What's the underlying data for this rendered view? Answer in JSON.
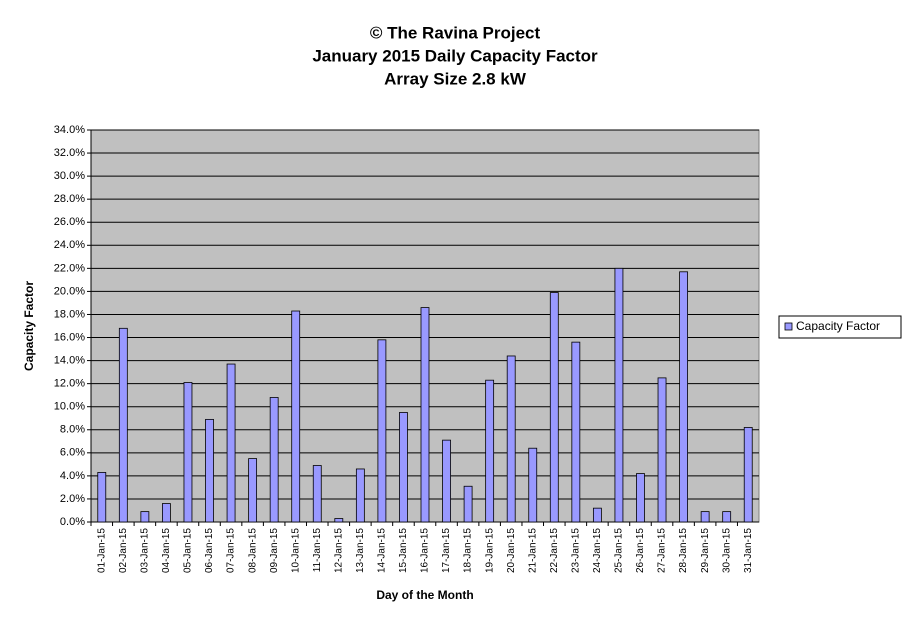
{
  "chart_data": {
    "type": "bar",
    "title": [
      "© The Ravina Project",
      "January 2015 Daily Capacity  Factor",
      "Array Size 2.8 kW"
    ],
    "x_label": "Day of the Month",
    "y_label": "Capacity Factor",
    "categories": [
      "01-Jan-15",
      "02-Jan-15",
      "03-Jan-15",
      "04-Jan-15",
      "05-Jan-15",
      "06-Jan-15",
      "07-Jan-15",
      "08-Jan-15",
      "09-Jan-15",
      "10-Jan-15",
      "11-Jan-15",
      "12-Jan-15",
      "13-Jan-15",
      "14-Jan-15",
      "15-Jan-15",
      "16-Jan-15",
      "17-Jan-15",
      "18-Jan-15",
      "19-Jan-15",
      "20-Jan-15",
      "21-Jan-15",
      "22-Jan-15",
      "23-Jan-15",
      "24-Jan-15",
      "25-Jan-15",
      "26-Jan-15",
      "27-Jan-15",
      "28-Jan-15",
      "29-Jan-15",
      "30-Jan-15",
      "31-Jan-15"
    ],
    "series": [
      {
        "name": "Capacity  Factor",
        "color": "#9999ff",
        "values": [
          4.3,
          16.8,
          0.9,
          1.6,
          12.1,
          8.9,
          13.7,
          5.5,
          10.8,
          18.3,
          4.9,
          0.3,
          4.6,
          15.8,
          9.5,
          18.6,
          7.1,
          3.1,
          12.3,
          14.4,
          6.4,
          19.9,
          15.6,
          1.2,
          22.0,
          4.2,
          12.5,
          21.7,
          0.9,
          0.9,
          8.2
        ]
      }
    ],
    "ylim": [
      0,
      34
    ],
    "yticks": [
      {
        "value": 0,
        "label": "0.0%"
      },
      {
        "value": 2,
        "label": "2.0%"
      },
      {
        "value": 4,
        "label": "4.0%"
      },
      {
        "value": 6,
        "label": "6.0%"
      },
      {
        "value": 8,
        "label": "8.0%"
      },
      {
        "value": 10,
        "label": "10.0%"
      },
      {
        "value": 12,
        "label": "12.0%"
      },
      {
        "value": 14,
        "label": "14.0%"
      },
      {
        "value": 16,
        "label": "16.0%"
      },
      {
        "value": 18,
        "label": "18.0%"
      },
      {
        "value": 20,
        "label": "20.0%"
      },
      {
        "value": 22,
        "label": "22.0%"
      },
      {
        "value": 24,
        "label": "24.0%"
      },
      {
        "value": 26,
        "label": "26.0%"
      },
      {
        "value": 28,
        "label": "28.0%"
      },
      {
        "value": 30,
        "label": "30.0%"
      },
      {
        "value": 32,
        "label": "32.0%"
      },
      {
        "value": 34,
        "label": "34.0%"
      }
    ],
    "grid": true,
    "plot_background": "#c0c0c0",
    "legend": "right"
  }
}
